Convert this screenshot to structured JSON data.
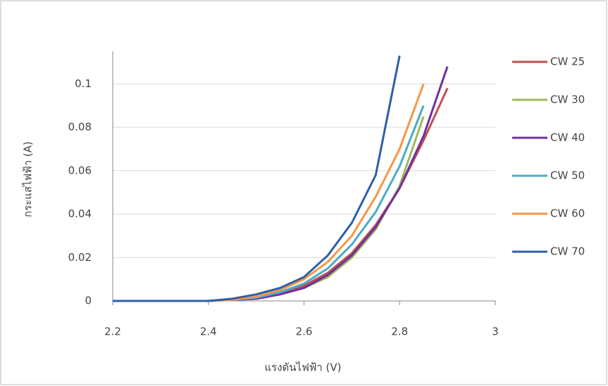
{
  "chart_data": {
    "type": "line",
    "x_label": "แรงดันไฟฟ้า (V)",
    "y_label": "กระแสไฟฟ้า (A)",
    "x": [
      2.2,
      2.25,
      2.3,
      2.35,
      2.4,
      2.45,
      2.5,
      2.55,
      2.6,
      2.65,
      2.7,
      2.75,
      2.8,
      2.85,
      2.9,
      2.95
    ],
    "series": [
      {
        "name": "CW 25",
        "color": "#c0504d",
        "values": [
          0,
          0,
          0,
          0,
          0,
          0.0005,
          0.001,
          0.003,
          0.007,
          0.013,
          0.022,
          0.035,
          0.052,
          0.074,
          0.098,
          null
        ]
      },
      {
        "name": "CW 30",
        "color": "#9bbb59",
        "values": [
          0,
          0,
          0,
          0,
          0,
          0.0005,
          0.001,
          0.003,
          0.006,
          0.011,
          0.02,
          0.033,
          0.053,
          0.085,
          null,
          null
        ]
      },
      {
        "name": "CW 40",
        "color": "#7030a0",
        "values": [
          0,
          0,
          0,
          0,
          0,
          0.0005,
          0.001,
          0.003,
          0.006,
          0.012,
          0.021,
          0.034,
          0.052,
          0.076,
          0.108,
          null
        ]
      },
      {
        "name": "CW 50",
        "color": "#4bacc6",
        "values": [
          0,
          0,
          0,
          0,
          0,
          0.0005,
          0.0015,
          0.004,
          0.008,
          0.015,
          0.026,
          0.041,
          0.062,
          0.09,
          null,
          null
        ]
      },
      {
        "name": "CW 60",
        "color": "#f79646",
        "values": [
          0,
          0,
          0,
          0,
          0,
          0.0005,
          0.002,
          0.005,
          0.01,
          0.018,
          0.03,
          0.048,
          0.07,
          0.1,
          null,
          null
        ]
      },
      {
        "name": "CW 70",
        "color": "#2e5fa8",
        "values": [
          0,
          0,
          0,
          0,
          0,
          0.001,
          0.003,
          0.006,
          0.011,
          0.021,
          0.036,
          0.058,
          0.113,
          null,
          null,
          null
        ]
      }
    ],
    "xlim": [
      2.2,
      3.0
    ],
    "xticks": [
      2.2,
      2.4,
      2.6,
      2.8,
      3
    ],
    "ylim": [
      0,
      0.115
    ],
    "yticks": [
      0,
      0.02,
      0.04,
      0.06,
      0.08,
      0.1
    ],
    "grid": true,
    "legend": "right"
  }
}
